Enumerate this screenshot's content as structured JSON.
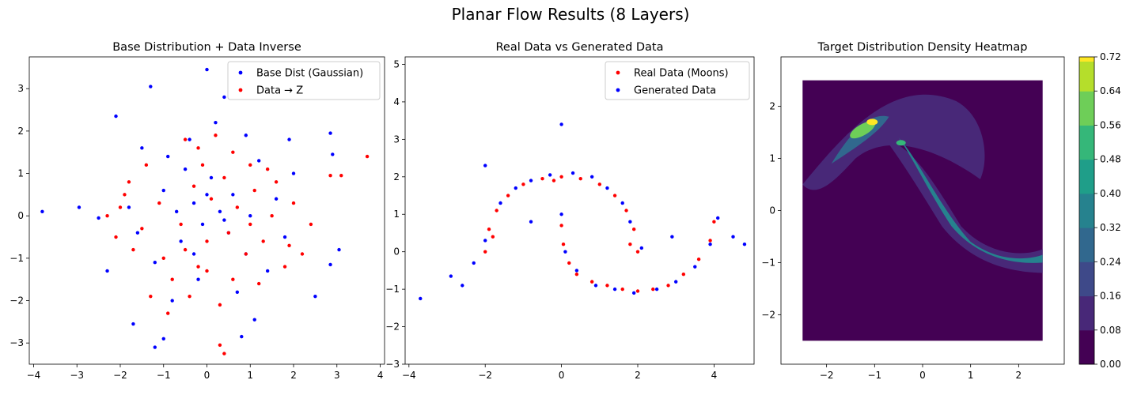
{
  "figure": {
    "suptitle": "Planar Flow Results (8 Layers)"
  },
  "chart_data": [
    {
      "type": "scatter",
      "title": "Base Distribution + Data Inverse",
      "xlabel": "",
      "ylabel": "",
      "xlim": [
        -4.1,
        4.1
      ],
      "ylim": [
        -3.5,
        3.75
      ],
      "xticks": [
        -4,
        -3,
        -2,
        -1,
        0,
        1,
        2,
        3,
        4
      ],
      "yticks": [
        -3,
        -2,
        -1,
        0,
        1,
        2,
        3
      ],
      "legend": "top-right",
      "series": [
        {
          "name": "Base Dist (Gaussian)",
          "color": "#0000ff",
          "points": [
            [
              -3.8,
              0.1
            ],
            [
              -2.95,
              0.2
            ],
            [
              -1.3,
              3.05
            ],
            [
              0,
              3.45
            ],
            [
              0.4,
              2.8
            ],
            [
              -2.1,
              2.35
            ],
            [
              2.85,
              1.95
            ],
            [
              2.9,
              1.45
            ],
            [
              -2.5,
              -0.05
            ],
            [
              -2.3,
              -1.3
            ],
            [
              -1.7,
              -2.55
            ],
            [
              -1.2,
              -3.1
            ],
            [
              -1.0,
              -2.9
            ],
            [
              0.8,
              -2.85
            ],
            [
              1.1,
              -2.45
            ],
            [
              2.5,
              -1.9
            ],
            [
              2.85,
              -1.15
            ],
            [
              3.05,
              -0.8
            ],
            [
              1.9,
              1.8
            ],
            [
              2.0,
              1.0
            ],
            [
              -1.5,
              1.6
            ],
            [
              -0.9,
              1.4
            ],
            [
              -0.5,
              1.1
            ],
            [
              0.1,
              0.9
            ],
            [
              0.6,
              0.5
            ],
            [
              -0.3,
              0.3
            ],
            [
              0.3,
              0.1
            ],
            [
              -0.1,
              -0.2
            ],
            [
              0.5,
              -0.4
            ],
            [
              -0.6,
              -0.6
            ],
            [
              0.9,
              -0.9
            ],
            [
              -1.2,
              -1.1
            ],
            [
              1.4,
              -1.3
            ],
            [
              -0.2,
              -1.5
            ],
            [
              0.7,
              -1.8
            ],
            [
              -0.8,
              -2.0
            ],
            [
              1.6,
              0.4
            ],
            [
              -1.8,
              0.2
            ],
            [
              1.2,
              1.3
            ],
            [
              -0.4,
              1.8
            ],
            [
              0.2,
              2.2
            ],
            [
              0.9,
              1.9
            ],
            [
              -1.0,
              0.6
            ],
            [
              1.8,
              -0.5
            ],
            [
              -1.6,
              -0.4
            ],
            [
              0.0,
              0.5
            ],
            [
              0.4,
              -0.1
            ],
            [
              -0.3,
              -0.9
            ],
            [
              1.0,
              0.0
            ],
            [
              -0.7,
              0.1
            ]
          ]
        },
        {
          "name": "Data → Z",
          "color": "#ff0000",
          "points": [
            [
              3.7,
              1.4
            ],
            [
              3.1,
              0.95
            ],
            [
              2.85,
              0.95
            ],
            [
              0.3,
              -3.05
            ],
            [
              0.4,
              -3.25
            ],
            [
              -0.5,
              1.8
            ],
            [
              -0.2,
              1.6
            ],
            [
              0.2,
              1.9
            ],
            [
              0.6,
              1.5
            ],
            [
              1.0,
              1.2
            ],
            [
              1.4,
              1.1
            ],
            [
              -1.4,
              1.2
            ],
            [
              -1.8,
              0.8
            ],
            [
              -2.0,
              0.2
            ],
            [
              -2.1,
              -0.5
            ],
            [
              -1.7,
              -0.8
            ],
            [
              -1.0,
              -1.0
            ],
            [
              -0.5,
              -0.8
            ],
            [
              0.0,
              -0.6
            ],
            [
              0.5,
              -0.4
            ],
            [
              1.0,
              -0.2
            ],
            [
              1.5,
              0.0
            ],
            [
              2.0,
              0.3
            ],
            [
              2.4,
              -0.2
            ],
            [
              1.8,
              -1.2
            ],
            [
              1.2,
              -1.6
            ],
            [
              0.6,
              -1.5
            ],
            [
              -0.2,
              -1.2
            ],
            [
              -0.8,
              -1.5
            ],
            [
              -1.3,
              -1.9
            ],
            [
              -0.9,
              -2.3
            ],
            [
              0.3,
              -2.1
            ],
            [
              -0.3,
              0.7
            ],
            [
              0.1,
              0.4
            ],
            [
              -1.1,
              0.3
            ],
            [
              -0.6,
              -0.2
            ],
            [
              1.6,
              0.8
            ],
            [
              1.9,
              -0.7
            ],
            [
              -2.3,
              0.0
            ],
            [
              0.9,
              -0.9
            ],
            [
              -0.1,
              1.2
            ],
            [
              0.7,
              0.2
            ],
            [
              -1.5,
              -0.3
            ],
            [
              1.3,
              -0.6
            ],
            [
              -0.4,
              -1.9
            ],
            [
              0.0,
              -1.3
            ],
            [
              2.2,
              -0.9
            ],
            [
              -1.9,
              0.5
            ],
            [
              0.4,
              0.9
            ],
            [
              1.1,
              0.6
            ]
          ]
        }
      ]
    },
    {
      "type": "scatter",
      "title": "Real Data vs Generated Data",
      "xlabel": "",
      "ylabel": "",
      "xlim": [
        -4.1,
        5.05
      ],
      "ylim": [
        -3.0,
        5.2
      ],
      "xticks": [
        -4,
        -2,
        0,
        2,
        4
      ],
      "yticks": [
        -3,
        -2,
        -1,
        0,
        1,
        2,
        3,
        4,
        5
      ],
      "legend": "top-right",
      "series": [
        {
          "name": "Real Data (Moons)",
          "color": "#ff0000",
          "points": [
            [
              -2.0,
              0.0
            ],
            [
              -1.9,
              0.6
            ],
            [
              -1.7,
              1.1
            ],
            [
              -1.4,
              1.5
            ],
            [
              -1.0,
              1.8
            ],
            [
              -0.5,
              1.95
            ],
            [
              0.0,
              2.0
            ],
            [
              0.5,
              1.95
            ],
            [
              1.0,
              1.8
            ],
            [
              1.4,
              1.5
            ],
            [
              1.7,
              1.1
            ],
            [
              1.9,
              0.6
            ],
            [
              2.0,
              0.0
            ],
            [
              0.0,
              0.7
            ],
            [
              0.05,
              0.2
            ],
            [
              0.2,
              -0.3
            ],
            [
              0.4,
              -0.6
            ],
            [
              0.8,
              -0.8
            ],
            [
              1.2,
              -0.9
            ],
            [
              1.6,
              -1.0
            ],
            [
              2.0,
              -1.05
            ],
            [
              2.4,
              -1.0
            ],
            [
              2.8,
              -0.9
            ],
            [
              3.2,
              -0.6
            ],
            [
              3.6,
              -0.2
            ],
            [
              3.9,
              0.3
            ],
            [
              4.0,
              0.8
            ],
            [
              -1.8,
              0.4
            ],
            [
              -0.2,
              1.9
            ],
            [
              1.8,
              0.2
            ]
          ]
        },
        {
          "name": "Generated Data",
          "color": "#0000ff",
          "points": [
            [
              -3.7,
              -1.25
            ],
            [
              -2.9,
              -0.65
            ],
            [
              -2.6,
              -0.9
            ],
            [
              -2.3,
              -0.3
            ],
            [
              -2.0,
              0.3
            ],
            [
              -1.6,
              1.3
            ],
            [
              -1.2,
              1.7
            ],
            [
              -0.8,
              1.9
            ],
            [
              -0.3,
              2.05
            ],
            [
              0.0,
              3.4
            ],
            [
              0.3,
              2.1
            ],
            [
              0.8,
              2.0
            ],
            [
              1.2,
              1.7
            ],
            [
              1.6,
              1.3
            ],
            [
              1.8,
              0.8
            ],
            [
              2.1,
              0.1
            ],
            [
              0.0,
              1.0
            ],
            [
              0.1,
              0.0
            ],
            [
              0.4,
              -0.5
            ],
            [
              0.9,
              -0.9
            ],
            [
              1.4,
              -1.0
            ],
            [
              1.9,
              -1.1
            ],
            [
              2.5,
              -1.0
            ],
            [
              3.0,
              -0.8
            ],
            [
              3.5,
              -0.4
            ],
            [
              3.9,
              0.2
            ],
            [
              4.1,
              0.9
            ],
            [
              4.5,
              0.4
            ],
            [
              4.8,
              0.2
            ],
            [
              -2.0,
              2.3
            ],
            [
              -0.8,
              0.8
            ],
            [
              2.9,
              0.4
            ]
          ]
        }
      ]
    },
    {
      "type": "heatmap",
      "title": "Target Distribution Density Heatmap",
      "xlabel": "",
      "ylabel": "",
      "xlim": [
        -2.95,
        2.95
      ],
      "ylim": [
        -2.95,
        2.95
      ],
      "extent": [
        -2.5,
        2.5,
        -2.5,
        2.5
      ],
      "xticks": [
        -2,
        -1,
        0,
        1,
        2
      ],
      "yticks": [
        -2,
        -1,
        0,
        1,
        2
      ],
      "colorbar": {
        "ticks": [
          "0.00",
          "0.08",
          "0.16",
          "0.24",
          "0.32",
          "0.40",
          "0.48",
          "0.56",
          "0.64",
          "0.72"
        ],
        "min": 0,
        "max": 0.72
      },
      "colormap": [
        "#440154",
        "#482878",
        "#3e4989",
        "#31688e",
        "#26828e",
        "#1f9e89",
        "#35b779",
        "#6ece58",
        "#b5de2b",
        "#fde725"
      ]
    }
  ]
}
